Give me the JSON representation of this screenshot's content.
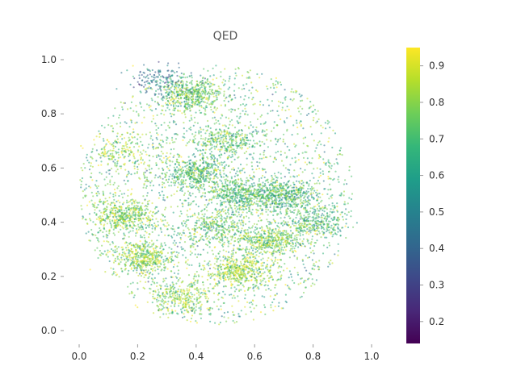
{
  "chart_data": {
    "type": "scatter",
    "title": "QED",
    "xlabel": "",
    "ylabel": "",
    "xlim": [
      -0.05,
      1.05
    ],
    "ylim": [
      -0.05,
      1.03
    ],
    "x_ticks": [
      "0.0",
      "0.2",
      "0.4",
      "0.6",
      "0.8",
      "1.0"
    ],
    "y_ticks": [
      "0.0",
      "0.2",
      "0.4",
      "0.6",
      "0.8",
      "1.0"
    ],
    "grid": false,
    "colormap": "viridis",
    "colorbar": {
      "label": "",
      "range": [
        0.14,
        0.95
      ],
      "ticks": [
        "0.2",
        "0.3",
        "0.4",
        "0.5",
        "0.6",
        "0.7",
        "0.8",
        "0.9"
      ]
    },
    "point_count_estimate": 15000,
    "clusters": [
      {
        "x": 0.15,
        "y": 0.42,
        "density": "high",
        "mean_color": 0.78
      },
      {
        "x": 0.22,
        "y": 0.27,
        "density": "high",
        "mean_color": 0.8
      },
      {
        "x": 0.38,
        "y": 0.87,
        "density": "high",
        "mean_color": 0.74
      },
      {
        "x": 0.4,
        "y": 0.58,
        "density": "high",
        "mean_color": 0.7
      },
      {
        "x": 0.55,
        "y": 0.5,
        "density": "high",
        "mean_color": 0.71
      },
      {
        "x": 0.7,
        "y": 0.5,
        "density": "high",
        "mean_color": 0.68
      },
      {
        "x": 0.65,
        "y": 0.33,
        "density": "high",
        "mean_color": 0.78
      },
      {
        "x": 0.55,
        "y": 0.22,
        "density": "high",
        "mean_color": 0.82
      },
      {
        "x": 0.47,
        "y": 0.38,
        "density": "medium",
        "mean_color": 0.72
      },
      {
        "x": 0.8,
        "y": 0.4,
        "density": "medium",
        "mean_color": 0.7
      },
      {
        "x": 0.5,
        "y": 0.7,
        "density": "medium",
        "mean_color": 0.72
      },
      {
        "x": 0.35,
        "y": 0.12,
        "density": "medium",
        "mean_color": 0.8
      },
      {
        "x": 0.14,
        "y": 0.66,
        "density": "low",
        "mean_color": 0.82
      },
      {
        "x": 0.28,
        "y": 0.92,
        "density": "low",
        "mean_color": 0.45
      }
    ]
  },
  "colors": {
    "viridis": [
      "#440154",
      "#482878",
      "#3e4989",
      "#31688e",
      "#26828e",
      "#1f9e89",
      "#35b779",
      "#6ece58",
      "#b5de2b",
      "#fde725"
    ]
  }
}
